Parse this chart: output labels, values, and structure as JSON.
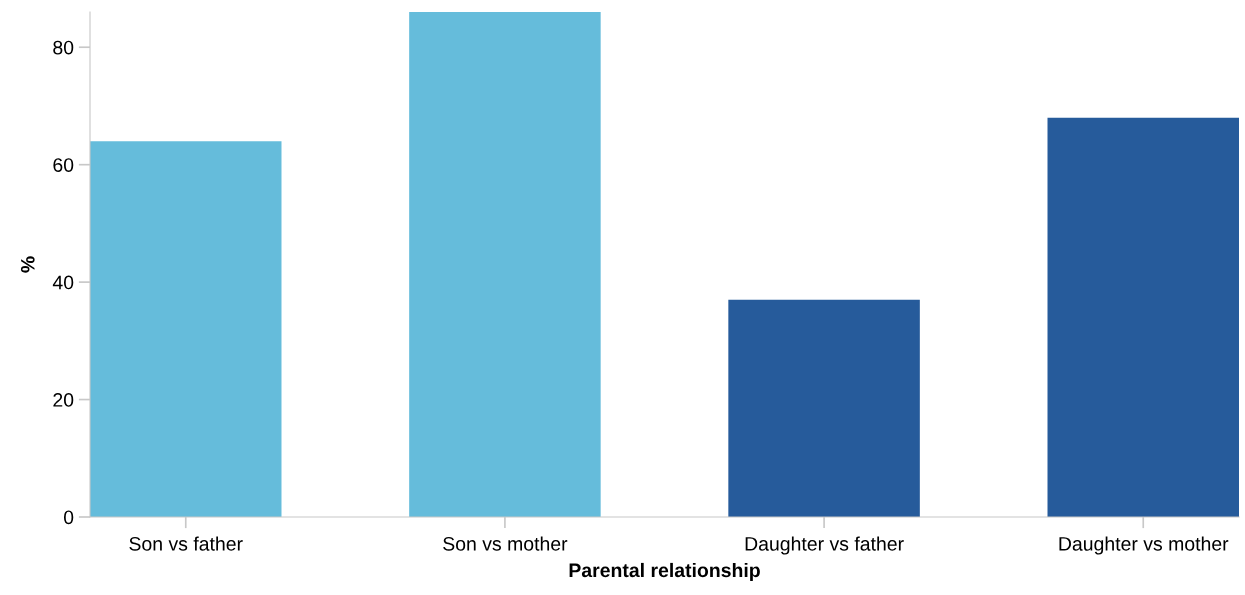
{
  "chart_data": {
    "type": "bar",
    "xlabel": "Parental relationship",
    "ylabel": "%",
    "categories": [
      "Son vs father",
      "Son vs mother",
      "Daughter vs father",
      "Daughter vs mother"
    ],
    "values": [
      64,
      86,
      37,
      68
    ],
    "colors": [
      "#65bcdb",
      "#65bcdb",
      "#265b9b",
      "#265b9b"
    ],
    "ylim": [
      0,
      86
    ],
    "yticks": [
      0,
      20,
      40,
      60,
      80
    ],
    "grid": false,
    "legend": false
  }
}
